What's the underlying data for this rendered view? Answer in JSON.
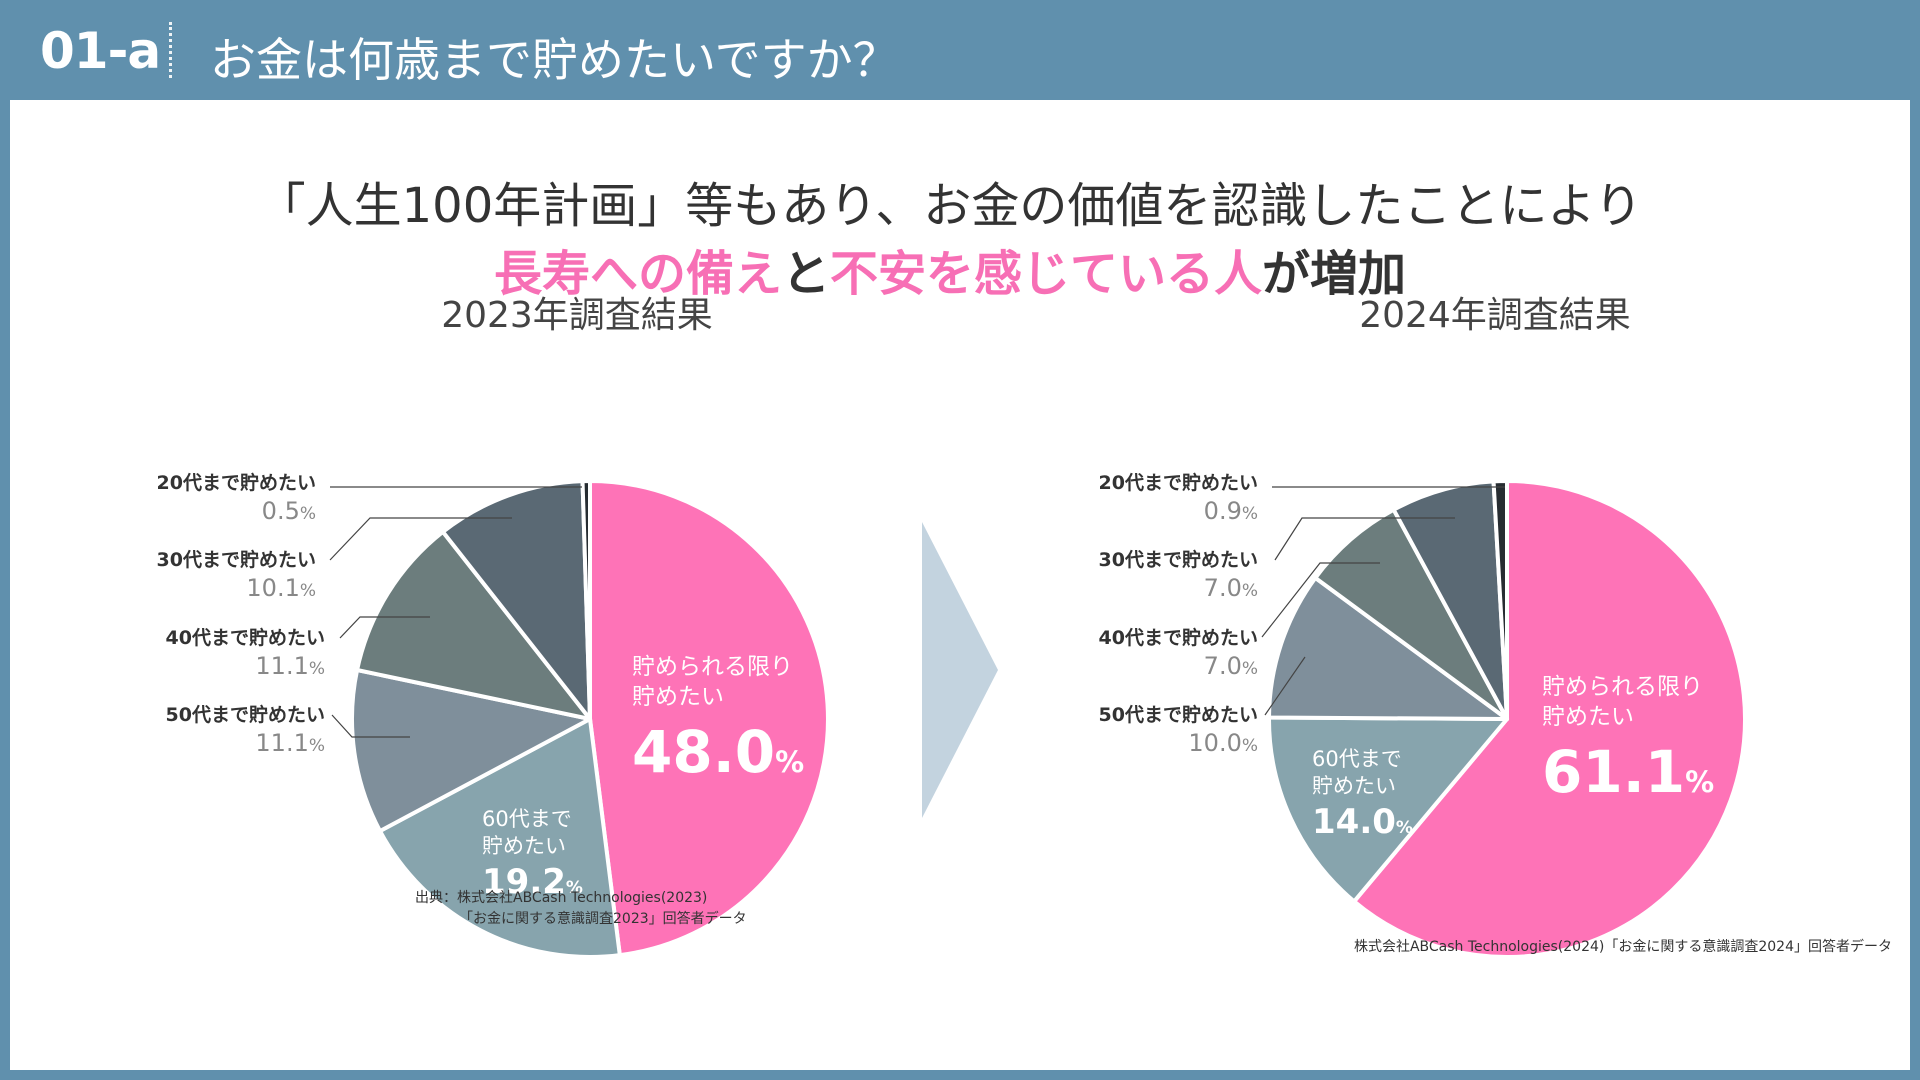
{
  "header": {
    "slide_number": "01-a",
    "title": "お金は何歳まで貯めたいですか？"
  },
  "headline": {
    "line1": "「人生100年計画」等もあり、お金の価値を認識したことにより",
    "line2_part1": "長寿への備え",
    "line2_part2": "と",
    "line2_part3": "不安を感じている人",
    "line2_part4": "が増加"
  },
  "colors": {
    "header_bg": "#6090ad",
    "accent_pink": "#f76fb5",
    "arrow": "#c3d3df"
  },
  "chart_data": [
    {
      "type": "pie",
      "title": "2023年調査結果",
      "unit": "%",
      "slices": [
        {
          "label": "貯められる限り貯めたい",
          "value": 48.0,
          "color": "#fe73b7"
        },
        {
          "label": "60代まで貯めたい",
          "value": 19.2,
          "color": "#87a4ad"
        },
        {
          "label": "50代まで貯めたい",
          "value": 11.1,
          "color": "#7f8f9b"
        },
        {
          "label": "40代まで貯めたい",
          "value": 11.1,
          "color": "#6c7d7d"
        },
        {
          "label": "30代まで貯めたい",
          "value": 10.1,
          "color": "#5a6974"
        },
        {
          "label": "20代まで貯めたい",
          "value": 0.5,
          "color": "#272d32"
        }
      ]
    },
    {
      "type": "pie",
      "title": "2024年調査結果",
      "unit": "%",
      "slices": [
        {
          "label": "貯められる限り貯めたい",
          "value": 61.1,
          "color": "#fe73b7"
        },
        {
          "label": "60代まで貯めたい",
          "value": 14.0,
          "color": "#87a4ad"
        },
        {
          "label": "50代まで貯めたい",
          "value": 10.0,
          "color": "#7f8f9b"
        },
        {
          "label": "40代まで貯めたい",
          "value": 7.0,
          "color": "#6c7d7d"
        },
        {
          "label": "30代まで貯めたい",
          "value": 7.0,
          "color": "#5a6974"
        },
        {
          "label": "20代まで貯めたい",
          "value": 0.9,
          "color": "#272d32"
        }
      ]
    }
  ],
  "labels_2023": {
    "big_name_1": "貯められる限り",
    "big_name_2": "貯めたい",
    "big_value": "48.0",
    "mid_name_1": "60代まで",
    "mid_name_2": "貯めたい",
    "mid_value": "19.2",
    "ext": [
      {
        "name": "20代まで貯めたい",
        "value": "0.5"
      },
      {
        "name": "30代まで貯めたい",
        "value": "10.1"
      },
      {
        "name": "40代まで貯めたい",
        "value": "11.1"
      },
      {
        "name": "50代まで貯めたい",
        "value": "11.1"
      }
    ]
  },
  "labels_2024": {
    "big_name_1": "貯められる限り",
    "big_name_2": "貯めたい",
    "big_value": "61.1",
    "mid_name_1": "60代まで",
    "mid_name_2": "貯めたい",
    "mid_value": "14.0",
    "ext": [
      {
        "name": "20代まで貯めたい",
        "value": "0.9"
      },
      {
        "name": "30代まで貯めたい",
        "value": "7.0"
      },
      {
        "name": "40代まで貯めたい",
        "value": "7.0"
      },
      {
        "name": "50代まで貯めたい",
        "value": "10.0"
      }
    ]
  },
  "percent_sign": "%",
  "source_left": {
    "line1": "出典：株式会社ABCash Technologies(2023)",
    "line2": "「お金に関する意識調査2023」回答者データ"
  },
  "source_right": "株式会社ABCash Technologies(2024)「お金に関する意識調査2024」回答者データ"
}
